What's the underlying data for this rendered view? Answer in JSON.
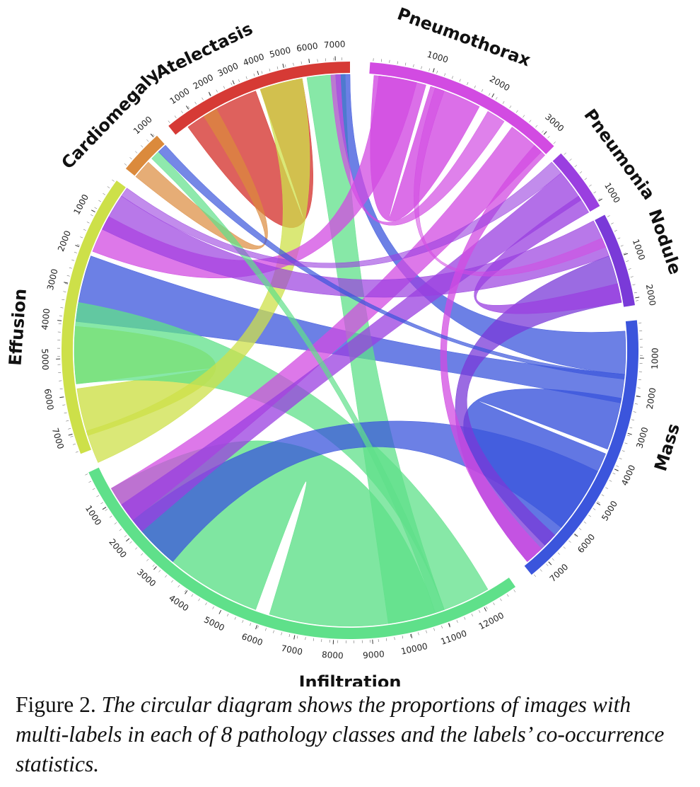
{
  "diagram": {
    "type": "chord",
    "groups": [
      {
        "name": "Pneumothorax",
        "color": "#d24be2",
        "max_tick": 3000,
        "tick_labels": [
          "1000",
          "2000",
          "3000"
        ]
      },
      {
        "name": "Pneumonia",
        "color": "#9a3fe0",
        "max_tick": 1000,
        "tick_labels": [
          "1000"
        ]
      },
      {
        "name": "Nodule",
        "color": "#7a3ad8",
        "max_tick": 2000,
        "tick_labels": [
          "1000",
          "2000"
        ]
      },
      {
        "name": "Mass",
        "color": "#3b55dc",
        "max_tick": 7000,
        "tick_labels": [
          "1000",
          "2000",
          "3000",
          "4000",
          "5000",
          "6000",
          "7000"
        ]
      },
      {
        "name": "Infiltration",
        "color": "#5fe08a",
        "max_tick": 12000,
        "tick_labels": [
          "1000",
          "2000",
          "3000",
          "4000",
          "5000",
          "6000",
          "7000",
          "8000",
          "9000",
          "10000",
          "11000",
          "12000"
        ]
      },
      {
        "name": "Effusion",
        "color": "#cde049",
        "max_tick": 7000,
        "tick_labels": [
          "1000",
          "2000",
          "3000",
          "4000",
          "5000",
          "6000",
          "7000"
        ]
      },
      {
        "name": "Cardiomegaly",
        "color": "#db8a3c",
        "max_tick": 1000,
        "tick_labels": [
          "1000"
        ]
      },
      {
        "name": "Atelectasis",
        "color": "#d63a35",
        "max_tick": 7000,
        "tick_labels": [
          "1000",
          "2000",
          "3000",
          "4000",
          "5000",
          "6000",
          "7000"
        ]
      }
    ]
  },
  "caption": {
    "lead": "Figure 2.",
    "text": "The circular diagram shows the proportions of images with multi-labels in each of 8 pathology classes and the labels’ co-occurrence statistics."
  }
}
